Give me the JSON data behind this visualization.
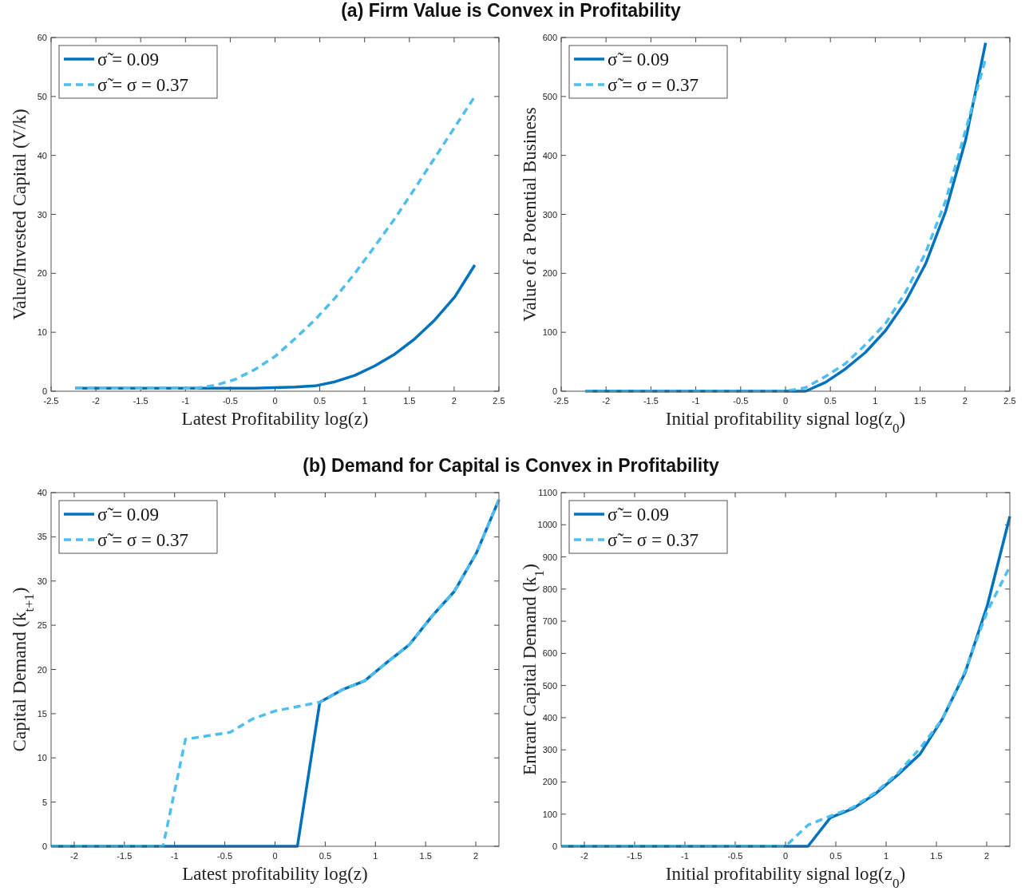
{
  "chart_data": [
    {
      "type": "line",
      "title": "(a) Firm Value is Convex in Profitability",
      "xlabel": "Latest Profitability log(z)",
      "ylabel": "Value/Invested Capital (V/k)",
      "xlim": [
        -2.5,
        2.5
      ],
      "xticks": [
        -2.5,
        -2,
        -1.5,
        -1,
        -0.5,
        0,
        0.5,
        1,
        1.5,
        2,
        2.5
      ],
      "ylim": [
        0,
        60
      ],
      "yticks": [
        0,
        10,
        20,
        30,
        40,
        50,
        60
      ],
      "legend": "top left",
      "grid": false,
      "x": [
        -2.23,
        -2.007,
        -1.784,
        -1.561,
        -1.338,
        -1.115,
        -0.892,
        -0.669,
        -0.446,
        -0.223,
        0,
        0.223,
        0.446,
        0.669,
        0.892,
        1.115,
        1.338,
        1.561,
        1.784,
        2.007,
        2.23
      ],
      "series": [
        {
          "name": "σ̃ = 0.09",
          "color": "#0072bd",
          "line_style": "solid",
          "values": [
            0.5,
            0.5,
            0.5,
            0.5,
            0.5,
            0.5,
            0.5,
            0.5,
            0.5,
            0.5,
            0.6,
            0.7,
            0.9,
            1.6,
            2.7,
            4.3,
            6.3,
            8.9,
            12.1,
            16.0,
            21.4
          ]
        },
        {
          "name": "σ̃ = σ = 0.37",
          "color": "#4dbeee",
          "line_style": "dashed",
          "values": [
            0.5,
            0.5,
            0.5,
            0.5,
            0.5,
            0.5,
            0.5,
            1.0,
            2.0,
            3.7,
            5.9,
            8.9,
            12.1,
            15.8,
            20.0,
            24.6,
            29.3,
            34.4,
            39.6,
            44.8,
            50.0
          ]
        }
      ]
    },
    {
      "type": "line",
      "xlabel": "Initial profitability signal log(z$_{0}$)",
      "ylabel": "Value of a Potential Business",
      "xlim": [
        -2.5,
        2.5
      ],
      "xticks": [
        -2.5,
        -2,
        -1.5,
        -1,
        -0.5,
        0,
        0.5,
        1,
        1.5,
        2,
        2.5
      ],
      "ylim": [
        0,
        600
      ],
      "yticks": [
        0,
        100,
        200,
        300,
        400,
        500,
        600
      ],
      "legend": "top left",
      "grid": false,
      "x": [
        -2.23,
        -2.007,
        -1.784,
        -1.561,
        -1.338,
        -1.115,
        -0.892,
        -0.669,
        -0.446,
        -0.223,
        0,
        0.223,
        0.446,
        0.669,
        0.892,
        1.115,
        1.338,
        1.561,
        1.784,
        2.007,
        2.23
      ],
      "series": [
        {
          "name": "σ̃ = 0.09",
          "color": "#0072bd",
          "line_style": "solid",
          "values": [
            0,
            0,
            0,
            0,
            0,
            0,
            0,
            0,
            0,
            0,
            0,
            0,
            15,
            38,
            66,
            103,
            152,
            216,
            305,
            426,
            591
          ]
        },
        {
          "name": "σ̃ = σ = 0.37",
          "color": "#4dbeee",
          "line_style": "dashed",
          "values": [
            0,
            0,
            0,
            0,
            0,
            0,
            0,
            0,
            0,
            0,
            0,
            6,
            25,
            47,
            79,
            115,
            168,
            235,
            323,
            443,
            564
          ]
        }
      ]
    },
    {
      "type": "line",
      "title": "(b) Demand for Capital is Convex in Profitability",
      "xlabel": "Latest profitability log(z)",
      "ylabel": "Capital Demand (k$_{t+1}$)",
      "xlim": [
        -2.23,
        2.23
      ],
      "xticks": [
        -2,
        -1.5,
        -1,
        -0.5,
        0,
        0.5,
        1,
        1.5,
        2
      ],
      "ylim": [
        0,
        40
      ],
      "yticks": [
        0,
        5,
        10,
        15,
        20,
        25,
        30,
        35,
        40
      ],
      "legend": "top left",
      "grid": false,
      "x": [
        -2.23,
        -2.007,
        -1.784,
        -1.561,
        -1.338,
        -1.115,
        -0.892,
        -0.669,
        -0.446,
        -0.223,
        0,
        0.223,
        0.446,
        0.669,
        0.892,
        1.115,
        1.338,
        1.561,
        1.784,
        2.007,
        2.23
      ],
      "series": [
        {
          "name": "σ̃ = 0.09",
          "color": "#0072bd",
          "line_style": "solid",
          "values": [
            0,
            0,
            0,
            0,
            0,
            0,
            0,
            0,
            0,
            0,
            0,
            0,
            16.3,
            17.7,
            18.7,
            20.8,
            22.8,
            26.0,
            28.8,
            33.2,
            39.2
          ]
        },
        {
          "name": "σ̃ = σ = 0.37",
          "color": "#4dbeee",
          "line_style": "dashed",
          "values": [
            0,
            0,
            0,
            0,
            0,
            0,
            12.1,
            12.5,
            12.9,
            14.4,
            15.3,
            15.8,
            16.3,
            17.7,
            18.7,
            20.8,
            22.8,
            26.0,
            28.8,
            33.2,
            39.2
          ]
        }
      ]
    },
    {
      "type": "line",
      "xlabel": "Initial profitability signal log(z$_{0}$)",
      "ylabel": "Entrant Capital Demand (k$_{1}$)",
      "xlim": [
        -2.23,
        2.23
      ],
      "xticks": [
        -2,
        -1.5,
        -1,
        -0.5,
        0,
        0.5,
        1,
        1.5,
        2
      ],
      "ylim": [
        0,
        1100
      ],
      "yticks": [
        0,
        100,
        200,
        300,
        400,
        500,
        600,
        700,
        800,
        900,
        1000,
        1100
      ],
      "legend": "top left",
      "grid": false,
      "x": [
        -2.23,
        -2.007,
        -1.784,
        -1.561,
        -1.338,
        -1.115,
        -0.892,
        -0.669,
        -0.446,
        -0.223,
        0,
        0.223,
        0.446,
        0.669,
        0.892,
        1.115,
        1.338,
        1.561,
        1.784,
        2.007,
        2.23
      ],
      "series": [
        {
          "name": "σ̃ = 0.09",
          "color": "#0072bd",
          "line_style": "solid",
          "values": [
            0,
            0,
            0,
            0,
            0,
            0,
            0,
            0,
            0,
            0,
            0,
            0,
            89,
            117,
            163,
            222,
            287,
            397,
            539,
            750,
            1026
          ]
        },
        {
          "name": "σ̃ = σ = 0.37",
          "color": "#4dbeee",
          "line_style": "dashed",
          "values": [
            0,
            0,
            0,
            0,
            0,
            0,
            0,
            0,
            0,
            0,
            0,
            66,
            94,
            121,
            167,
            227,
            305,
            397,
            544,
            732,
            870
          ]
        }
      ]
    }
  ]
}
